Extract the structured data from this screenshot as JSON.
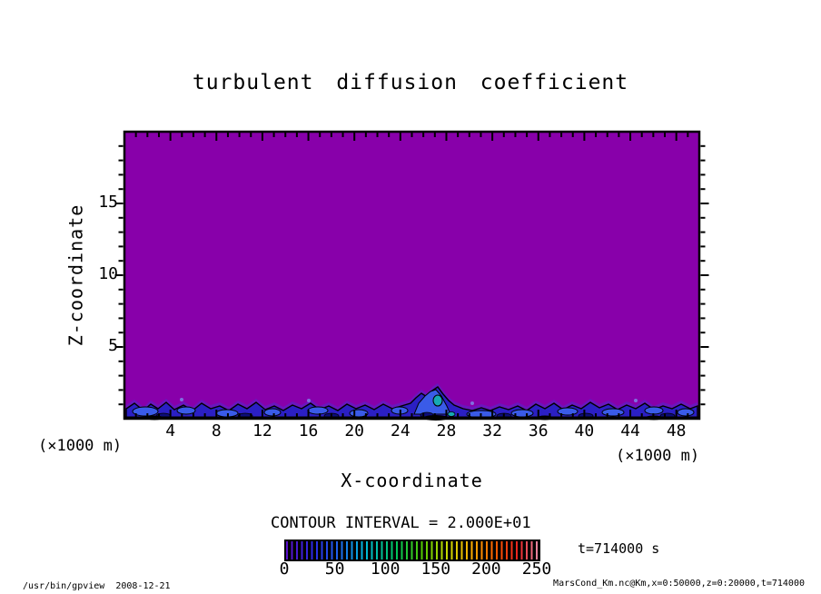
{
  "title": "turbulent diffusion coefficient",
  "axes": {
    "x_label": "X-coordinate",
    "y_label": "Z-coordinate",
    "x_unit_left": "(×1000 m)",
    "x_unit_right": "(×1000 m)"
  },
  "legend": {
    "contour_interval_label": "CONTOUR INTERVAL = 2.000E+01",
    "time_label": "t=714000 s"
  },
  "footer": {
    "command": "/usr/bin/gpview  2008-12-21",
    "data_source": "MarsCond_Km.nc@Km,x=0:50000,z=0:20000,t=714000"
  },
  "chart_data": {
    "type": "heatmap",
    "title": "turbulent diffusion coefficient",
    "xlabel": "X-coordinate",
    "ylabel": "Z-coordinate",
    "x_units": "×1000 m",
    "y_units": "×1000 m",
    "xlim": [
      0,
      50
    ],
    "ylim": [
      0,
      20
    ],
    "x_ticks": [
      4,
      8,
      12,
      16,
      20,
      24,
      28,
      32,
      36,
      40,
      44,
      48
    ],
    "y_ticks": [
      5,
      10,
      15
    ],
    "x_minor_step": 1,
    "y_minor_step": 1,
    "contour_interval": 20,
    "time_seconds": 714000,
    "colorbar": {
      "min": 0,
      "max": 250,
      "ticks": [
        0,
        50,
        100,
        150,
        200,
        250
      ],
      "style": "black bar with thin rainbow stripes per contour level",
      "colors": [
        "#5B0FC8",
        "#2A2AE8",
        "#1E66F0",
        "#00BBDD",
        "#00C85A",
        "#55CC00",
        "#CCDD00",
        "#FFAA00",
        "#FF5500",
        "#EE2222",
        "#F08CA8"
      ]
    },
    "field_colors": {
      "background_purple": "#8800AA",
      "boundary_layer_blue": "#2B1FC4",
      "bright_blue": "#3A5BE8",
      "navy": "#0D0D7A",
      "cyan_peak": "#17A9B4",
      "contour_line": "#000000"
    },
    "description": "Diffusion coefficient is in the lowest contour bin (purple, <20) over nearly the entire 50km x 20km domain; a thin noisy turbulent boundary layer with values ~20-80 (blue shades outlined by black contour lines, small cyan maximum ~100) hugs the surface at z~0-2 km, with a plume-like peak near x~27."
  }
}
